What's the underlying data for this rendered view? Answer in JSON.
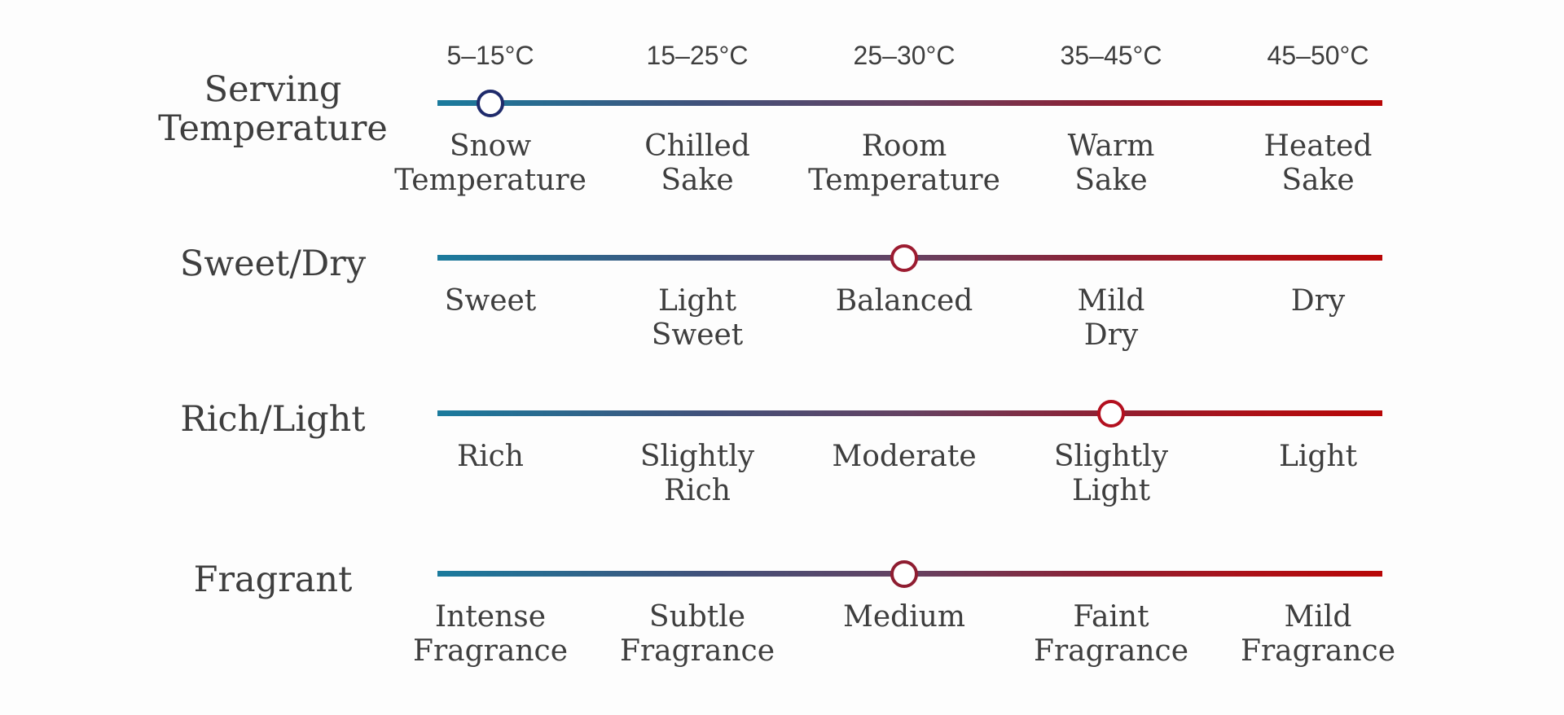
{
  "page": {
    "background": "#FDFDFD",
    "text_color": "#3E3E3E"
  },
  "chart_data": {
    "type": "scatter",
    "title": "",
    "grid": false,
    "legend_position": "none",
    "track_gradient": [
      {
        "color": "#1B7B9D",
        "pos": 0
      },
      {
        "color": "#41527B",
        "pos": 28
      },
      {
        "color": "#654262",
        "pos": 50
      },
      {
        "color": "#8E2134",
        "pos": 70
      },
      {
        "color": "#AC1118",
        "pos": 86
      },
      {
        "color": "#B80707",
        "pos": 100
      }
    ],
    "rows": [
      {
        "label": "Serving Temperature",
        "ticks": [
          "5–15°C",
          "15–25°C",
          "25–30°C",
          "35–45°C",
          "45–50°C"
        ],
        "categories": [
          "Snow Temperature",
          "Chilled Sake",
          "Room Temperature",
          "Warm Sake",
          "Heated Sake"
        ],
        "selected_index": 0,
        "selected_category": "Snow Temperature",
        "selected_tick": "5–15°C",
        "marker_color": "#1F2B6B"
      },
      {
        "label": "Sweet/Dry",
        "categories": [
          "Sweet",
          "Light Sweet",
          "Balanced",
          "Mild Dry",
          "Dry"
        ],
        "selected_index": 2,
        "selected_category": "Balanced",
        "marker_color": "#9C1C31"
      },
      {
        "label": "Rich/Light",
        "categories": [
          "Rich",
          "Slightly Rich",
          "Moderate",
          "Slightly Light",
          "Light"
        ],
        "selected_index": 3,
        "selected_category": "Slightly Light",
        "marker_color": "#B3101F"
      },
      {
        "label": "Fragrant",
        "categories": [
          "Intense Fragrance",
          "Subtle Fragrance",
          "Medium",
          "Faint Fragrance",
          "Mild Fragrance"
        ],
        "selected_index": 2,
        "selected_category": "Medium",
        "marker_color": "#8F1D31"
      }
    ]
  }
}
